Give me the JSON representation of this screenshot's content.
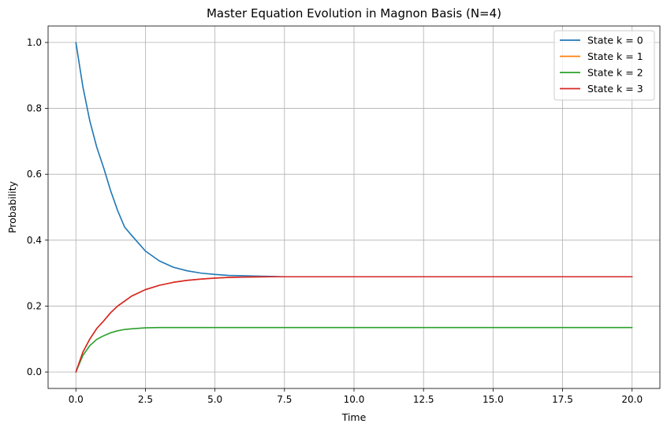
{
  "chart_data": {
    "type": "line",
    "title": "Master Equation Evolution in Magnon Basis (N=4)",
    "xlabel": "Time",
    "ylabel": "Probability",
    "xlim": [
      -1.0,
      21.0
    ],
    "ylim": [
      -0.05,
      1.05
    ],
    "x_ticks": [
      0.0,
      2.5,
      5.0,
      7.5,
      10.0,
      12.5,
      15.0,
      17.5,
      20.0
    ],
    "x_tick_labels": [
      "0.0",
      "2.5",
      "5.0",
      "7.5",
      "10.0",
      "12.5",
      "15.0",
      "17.5",
      "20.0"
    ],
    "y_ticks": [
      0.0,
      0.2,
      0.4,
      0.6,
      0.8,
      1.0
    ],
    "y_tick_labels": [
      "0.0",
      "0.2",
      "0.4",
      "0.6",
      "0.8",
      "1.0"
    ],
    "grid": true,
    "legend_position": "top-right",
    "x": [
      0,
      0.25,
      0.5,
      0.75,
      1.0,
      1.25,
      1.5,
      1.75,
      2.0,
      2.5,
      3.0,
      3.5,
      4.0,
      4.5,
      5.0,
      5.5,
      6.0,
      6.5,
      7.0,
      7.5,
      8.0,
      9.0,
      10.0,
      12.5,
      15.0,
      17.5,
      20.0
    ],
    "series": [
      {
        "name": "State k = 0",
        "color": "#1f77b4",
        "values": [
          1.0,
          0.866,
          0.762,
          0.682,
          0.619,
          0.55,
          0.49,
          0.44,
          0.415,
          0.367,
          0.337,
          0.318,
          0.307,
          0.3,
          0.296,
          0.293,
          0.292,
          0.291,
          0.29,
          0.289,
          0.289,
          0.289,
          0.289,
          0.289,
          0.289,
          0.289,
          0.289
        ]
      },
      {
        "name": "State k = 1",
        "color": "#ff7f0e",
        "values": [
          0.0,
          0.06,
          0.1,
          0.132,
          0.155,
          0.18,
          0.2,
          0.215,
          0.23,
          0.25,
          0.263,
          0.272,
          0.278,
          0.282,
          0.285,
          0.287,
          0.288,
          0.2885,
          0.289,
          0.289,
          0.289,
          0.289,
          0.289,
          0.289,
          0.289,
          0.289,
          0.289
        ]
      },
      {
        "name": "State k = 2",
        "color": "#2ca02c",
        "values": [
          0.0,
          0.05,
          0.08,
          0.099,
          0.11,
          0.119,
          0.125,
          0.129,
          0.131,
          0.134,
          0.135,
          0.135,
          0.135,
          0.135,
          0.135,
          0.135,
          0.135,
          0.135,
          0.135,
          0.135,
          0.135,
          0.135,
          0.135,
          0.135,
          0.135,
          0.135,
          0.135
        ]
      },
      {
        "name": "State k = 3",
        "color": "#d62728",
        "values": [
          0.0,
          0.06,
          0.1,
          0.132,
          0.155,
          0.18,
          0.2,
          0.215,
          0.23,
          0.25,
          0.263,
          0.272,
          0.278,
          0.282,
          0.285,
          0.287,
          0.288,
          0.2885,
          0.289,
          0.289,
          0.289,
          0.289,
          0.289,
          0.289,
          0.289,
          0.289,
          0.289
        ]
      }
    ]
  }
}
